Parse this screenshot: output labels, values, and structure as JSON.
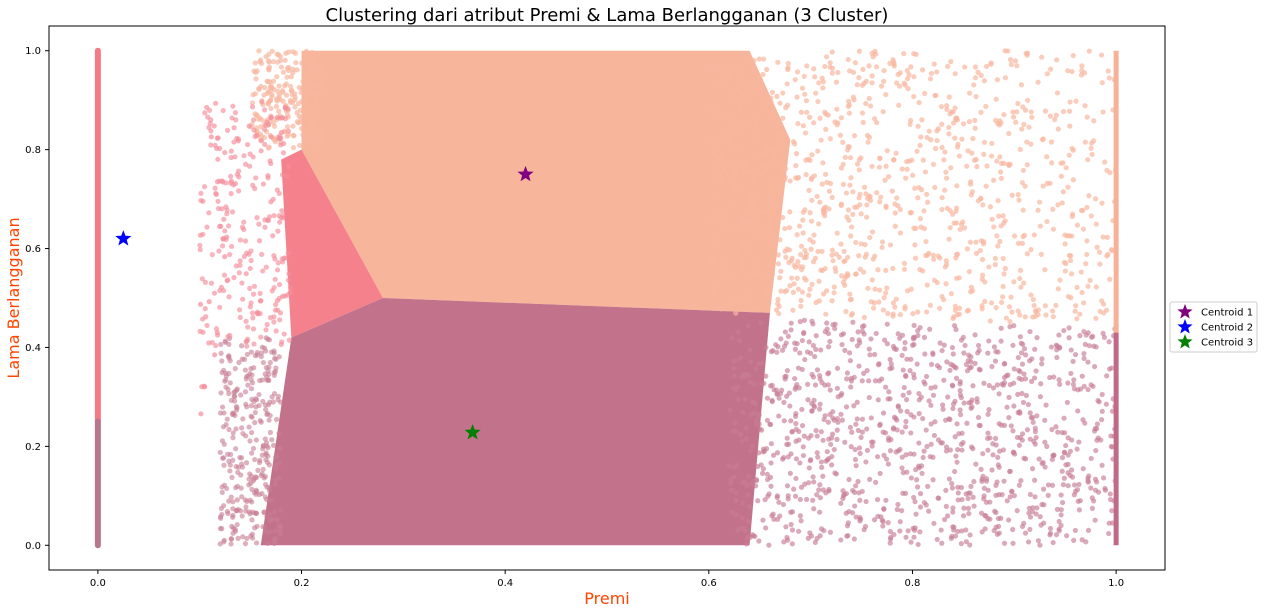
{
  "chart_data": {
    "type": "scatter",
    "title": "Clustering dari atribut Premi & Lama Berlangganan (3 Cluster)",
    "xlabel": "Premi",
    "ylabel": "Lama Berlangganan",
    "xlim": [
      -0.048,
      1.048
    ],
    "ylim": [
      -0.05,
      1.05
    ],
    "x_ticks": [
      "0.0",
      "0.2",
      "0.4",
      "0.6",
      "0.8",
      "1.0"
    ],
    "y_ticks": [
      "0.0",
      "0.2",
      "0.4",
      "0.6",
      "0.8",
      "1.0"
    ],
    "grid": false,
    "legend_position": "right",
    "axis_label_color": "#ff4500",
    "series": [
      {
        "color": "#f6836f",
        "description_cluster": "upper-right region, y above ~0.45, x above ~0.2"
      },
      {
        "color": "#f47a86",
        "description_cluster": "left wedge around x 0.1-0.3 plus vertical line at x = 0"
      },
      {
        "color": "#c06a85",
        "description_cluster": "lower region, y below ~0.5, x above ~0.15"
      }
    ],
    "centroids": [
      {
        "name": "Centroid 1",
        "x": 0.42,
        "y": 0.75,
        "color": "#800080"
      },
      {
        "name": "Centroid 2",
        "x": 0.025,
        "y": 0.62,
        "color": "#0000ff"
      },
      {
        "name": "Centroid 3",
        "x": 0.368,
        "y": 0.228,
        "color": "#008000"
      }
    ]
  }
}
